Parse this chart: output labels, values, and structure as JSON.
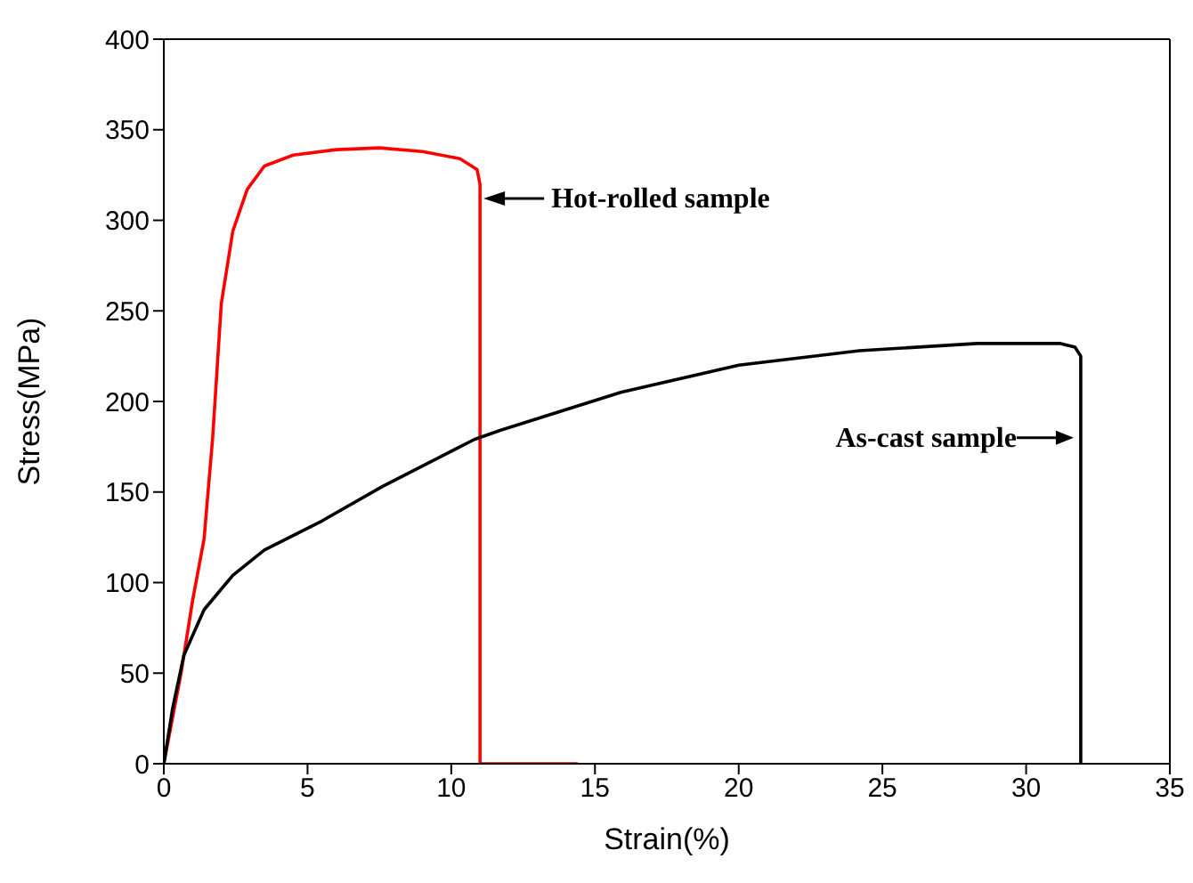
{
  "chart_data": {
    "type": "line",
    "xlabel": "Strain(%)",
    "ylabel": "Stress(MPa)",
    "xlim": [
      0,
      35
    ],
    "xticks": [
      0,
      5,
      10,
      15,
      20,
      25,
      30,
      35
    ],
    "ylim": [
      0,
      400
    ],
    "yticks": [
      0,
      50,
      100,
      150,
      200,
      250,
      300,
      350,
      400
    ],
    "marker": "none",
    "line_style": "solid",
    "series": [
      {
        "color": "#ff0000",
        "x": [
          0,
          0.6,
          1.0,
          1.4,
          1.7,
          2.0,
          2.4,
          2.9,
          3.5,
          4.5,
          6,
          7.5,
          9,
          10.3,
          10.9,
          11,
          11,
          14.4
        ],
        "values": [
          0,
          50,
          90,
          124,
          180,
          254,
          294,
          317,
          330,
          336,
          339,
          340,
          338,
          334,
          328,
          320,
          0,
          0
        ]
      },
      {
        "color": "#000000",
        "x": [
          0,
          0.3,
          0.7,
          1.4,
          2.4,
          3.5,
          5.5,
          7.6,
          10.8,
          11.7,
          15.9,
          20,
          24.2,
          28.3,
          31.2,
          31.7,
          31.9,
          31.9
        ],
        "values": [
          0,
          30,
          60,
          85,
          104,
          118,
          134,
          153,
          179,
          184,
          205,
          220,
          228,
          232,
          232,
          230,
          225,
          0
        ]
      }
    ],
    "annotations": [
      {
        "text": "Hot-rolled sample",
        "x": 11,
        "y": 312
      },
      {
        "text": "As-cast sample",
        "x": 31.9,
        "y": 180
      }
    ]
  }
}
